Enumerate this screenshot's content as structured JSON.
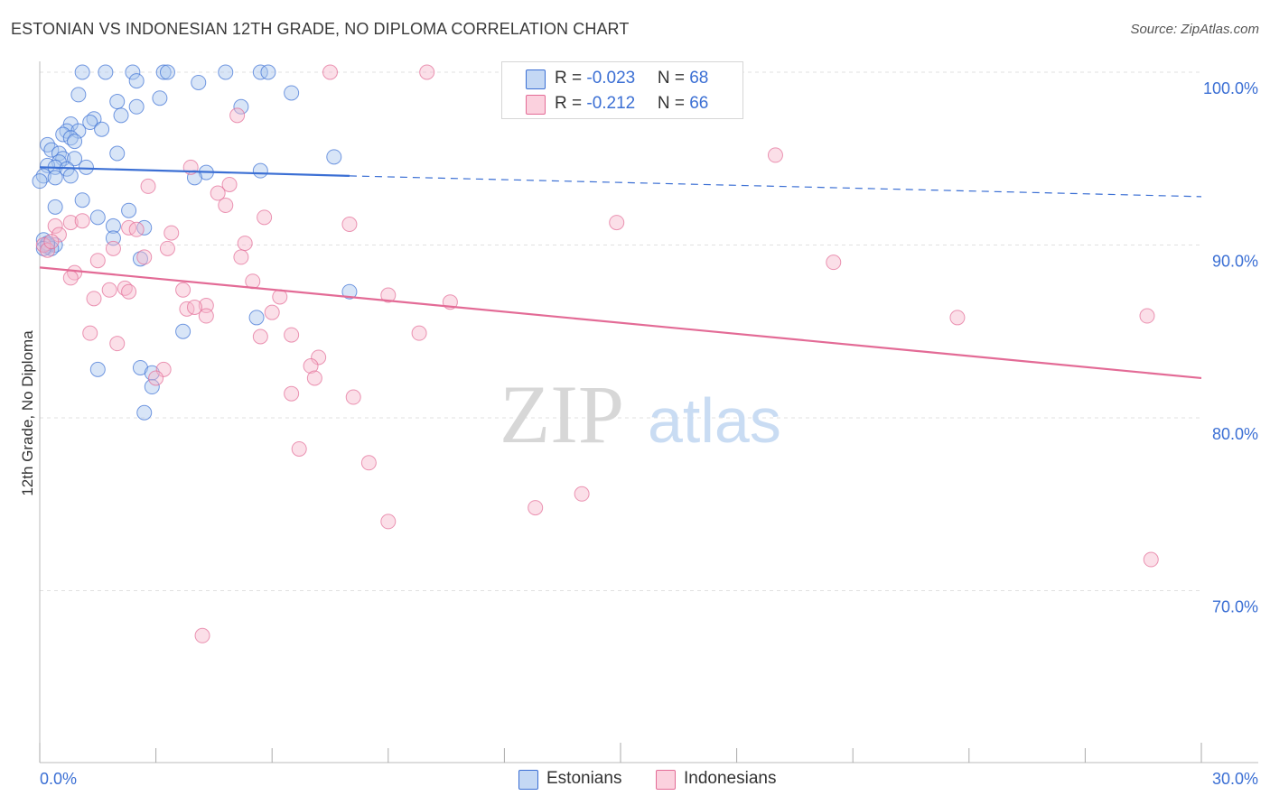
{
  "header": {
    "title": "ESTONIAN VS INDONESIAN 12TH GRADE, NO DIPLOMA CORRELATION CHART",
    "source": "Source: ZipAtlas.com"
  },
  "colors": {
    "blue": "#3b6fd4",
    "blue_fill": "#a8c6ee",
    "pink": "#e36b96",
    "pink_fill": "#f6b8cc",
    "grid": "#e0e0e0",
    "axis_label": "#3b6fd4"
  },
  "legend": {
    "blue": {
      "r_label": "R = ",
      "r_value": "-0.023",
      "n_label": "N = ",
      "n_value": "68"
    },
    "pink": {
      "r_label": "R = ",
      "r_value": "-0.212",
      "n_label": "N = ",
      "n_value": "66"
    }
  },
  "bottom_legend": {
    "blue": "Estonians",
    "pink": "Indonesians"
  },
  "watermark": {
    "zip": "ZIP",
    "atlas": "atlas"
  },
  "chart_data": {
    "type": "scatter",
    "title": "ESTONIAN VS INDONESIAN 12TH GRADE, NO DIPLOMA CORRELATION CHART",
    "xlabel": "",
    "ylabel": "12th Grade, No Diploma",
    "xlim": [
      0,
      30
    ],
    "ylim": [
      60,
      102
    ],
    "x_tick_labels": [
      {
        "value": 0,
        "label": "0.0%"
      },
      {
        "value": 30,
        "label": "30.0%"
      }
    ],
    "y_tick_labels": [
      {
        "value": 100,
        "label": "100.0%"
      },
      {
        "value": 90,
        "label": "90.0%"
      },
      {
        "value": 80,
        "label": "80.0%"
      },
      {
        "value": 70,
        "label": "70.0%"
      }
    ],
    "grid": true,
    "legend_position": "top-center",
    "series": [
      {
        "name": "Estonians",
        "color": "#3b6fd4",
        "trend": {
          "x": [
            0,
            8
          ],
          "y": [
            94.5,
            94.0
          ],
          "dashed_to_x": 30,
          "dashed_y": 92.8
        },
        "points": [
          [
            1.1,
            100
          ],
          [
            1.7,
            100
          ],
          [
            2.4,
            100
          ],
          [
            3.2,
            100
          ],
          [
            3.3,
            100
          ],
          [
            4.8,
            100
          ],
          [
            5.7,
            100
          ],
          [
            5.9,
            100
          ],
          [
            2.5,
            99.5
          ],
          [
            4.1,
            99.4
          ],
          [
            6.5,
            98.8
          ],
          [
            1.0,
            98.7
          ],
          [
            3.1,
            98.5
          ],
          [
            2.0,
            98.3
          ],
          [
            5.2,
            98.0
          ],
          [
            2.5,
            98.0
          ],
          [
            2.1,
            97.5
          ],
          [
            1.4,
            97.3
          ],
          [
            1.3,
            97.1
          ],
          [
            0.8,
            97.0
          ],
          [
            1.6,
            96.7
          ],
          [
            0.7,
            96.6
          ],
          [
            1.0,
            96.6
          ],
          [
            0.6,
            96.4
          ],
          [
            0.8,
            96.2
          ],
          [
            0.9,
            96.0
          ],
          [
            0.2,
            95.8
          ],
          [
            0.3,
            95.5
          ],
          [
            2.0,
            95.3
          ],
          [
            0.5,
            95.3
          ],
          [
            7.6,
            95.1
          ],
          [
            0.6,
            95.0
          ],
          [
            0.9,
            95.0
          ],
          [
            0.5,
            94.8
          ],
          [
            0.2,
            94.6
          ],
          [
            0.4,
            94.5
          ],
          [
            1.2,
            94.5
          ],
          [
            0.7,
            94.4
          ],
          [
            5.7,
            94.3
          ],
          [
            4.3,
            94.2
          ],
          [
            0.1,
            94.0
          ],
          [
            0.8,
            94.0
          ],
          [
            0.4,
            93.9
          ],
          [
            0.0,
            93.7
          ],
          [
            4.0,
            93.9
          ],
          [
            1.1,
            92.6
          ],
          [
            0.4,
            92.2
          ],
          [
            2.3,
            92.0
          ],
          [
            1.5,
            91.6
          ],
          [
            1.9,
            91.1
          ],
          [
            2.7,
            91.0
          ],
          [
            1.9,
            90.4
          ],
          [
            0.1,
            90.3
          ],
          [
            0.4,
            90.0
          ],
          [
            0.2,
            89.9
          ],
          [
            2.6,
            89.2
          ],
          [
            8.0,
            87.3
          ],
          [
            5.6,
            85.8
          ],
          [
            3.7,
            85.0
          ],
          [
            1.5,
            82.8
          ],
          [
            2.6,
            82.9
          ],
          [
            2.9,
            82.6
          ],
          [
            2.9,
            81.8
          ],
          [
            2.7,
            80.3
          ],
          [
            0.2,
            90.0
          ],
          [
            0.3,
            89.8
          ],
          [
            0.2,
            90.1
          ],
          [
            0.1,
            89.8
          ]
        ]
      },
      {
        "name": "Indonesians",
        "color": "#e36b96",
        "trend": {
          "x": [
            0,
            30
          ],
          "y": [
            88.7,
            82.3
          ]
        },
        "points": [
          [
            7.5,
            100
          ],
          [
            10.0,
            100
          ],
          [
            5.1,
            97.5
          ],
          [
            19.0,
            95.2
          ],
          [
            3.9,
            94.5
          ],
          [
            4.9,
            93.5
          ],
          [
            2.8,
            93.4
          ],
          [
            4.6,
            93.0
          ],
          [
            4.8,
            92.3
          ],
          [
            5.8,
            91.6
          ],
          [
            0.4,
            91.1
          ],
          [
            0.8,
            91.3
          ],
          [
            1.1,
            91.4
          ],
          [
            8.0,
            91.2
          ],
          [
            14.9,
            91.3
          ],
          [
            2.3,
            91.0
          ],
          [
            2.5,
            90.9
          ],
          [
            3.4,
            90.7
          ],
          [
            0.5,
            90.6
          ],
          [
            5.3,
            90.1
          ],
          [
            1.9,
            89.8
          ],
          [
            3.3,
            89.8
          ],
          [
            2.7,
            89.3
          ],
          [
            5.2,
            89.3
          ],
          [
            1.5,
            89.1
          ],
          [
            20.5,
            89.0
          ],
          [
            0.9,
            88.4
          ],
          [
            0.8,
            88.1
          ],
          [
            5.5,
            87.9
          ],
          [
            1.8,
            87.4
          ],
          [
            2.2,
            87.5
          ],
          [
            2.3,
            87.3
          ],
          [
            3.7,
            87.4
          ],
          [
            6.2,
            87.0
          ],
          [
            9.0,
            87.1
          ],
          [
            1.4,
            86.9
          ],
          [
            10.6,
            86.7
          ],
          [
            4.3,
            86.5
          ],
          [
            3.8,
            86.3
          ],
          [
            4.0,
            86.4
          ],
          [
            6.0,
            86.1
          ],
          [
            4.3,
            85.9
          ],
          [
            23.7,
            85.8
          ],
          [
            28.6,
            85.9
          ],
          [
            1.3,
            84.9
          ],
          [
            5.7,
            84.7
          ],
          [
            6.5,
            84.8
          ],
          [
            9.8,
            84.9
          ],
          [
            2.0,
            84.3
          ],
          [
            7.2,
            83.5
          ],
          [
            7.0,
            83.0
          ],
          [
            3.2,
            82.8
          ],
          [
            7.1,
            82.3
          ],
          [
            3.0,
            82.3
          ],
          [
            6.5,
            81.4
          ],
          [
            8.1,
            81.2
          ],
          [
            6.7,
            78.2
          ],
          [
            8.5,
            77.4
          ],
          [
            14.0,
            75.6
          ],
          [
            12.8,
            74.8
          ],
          [
            9.0,
            74.0
          ],
          [
            28.7,
            71.8
          ],
          [
            4.2,
            67.4
          ],
          [
            0.1,
            90.0
          ],
          [
            0.2,
            89.7
          ],
          [
            0.3,
            90.2
          ]
        ]
      }
    ]
  }
}
